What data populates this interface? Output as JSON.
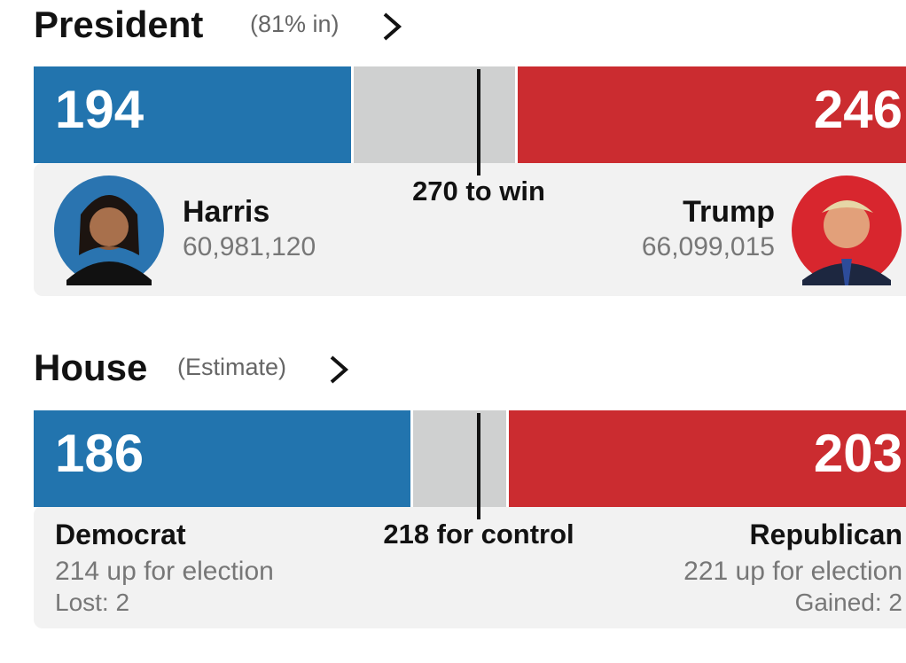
{
  "president": {
    "title": "President",
    "subtitle": "(81% in)",
    "dem_seats": 194,
    "rep_seats": 246,
    "threshold": 270,
    "threshold_label": "270 to win",
    "dem": {
      "name": "Harris",
      "votes": "60,981,120"
    },
    "rep": {
      "name": "Trump",
      "votes": "66,099,015"
    }
  },
  "house": {
    "title": "House",
    "subtitle": "(Estimate)",
    "dem_seats": 186,
    "rep_seats": 203,
    "threshold": 218,
    "threshold_label": "218 for control",
    "dem": {
      "name": "Democrat",
      "up": "214 up for election",
      "change": "Lost: 2"
    },
    "rep": {
      "name": "Republican",
      "up": "221 up for election",
      "change": "Gained: 2"
    }
  }
}
